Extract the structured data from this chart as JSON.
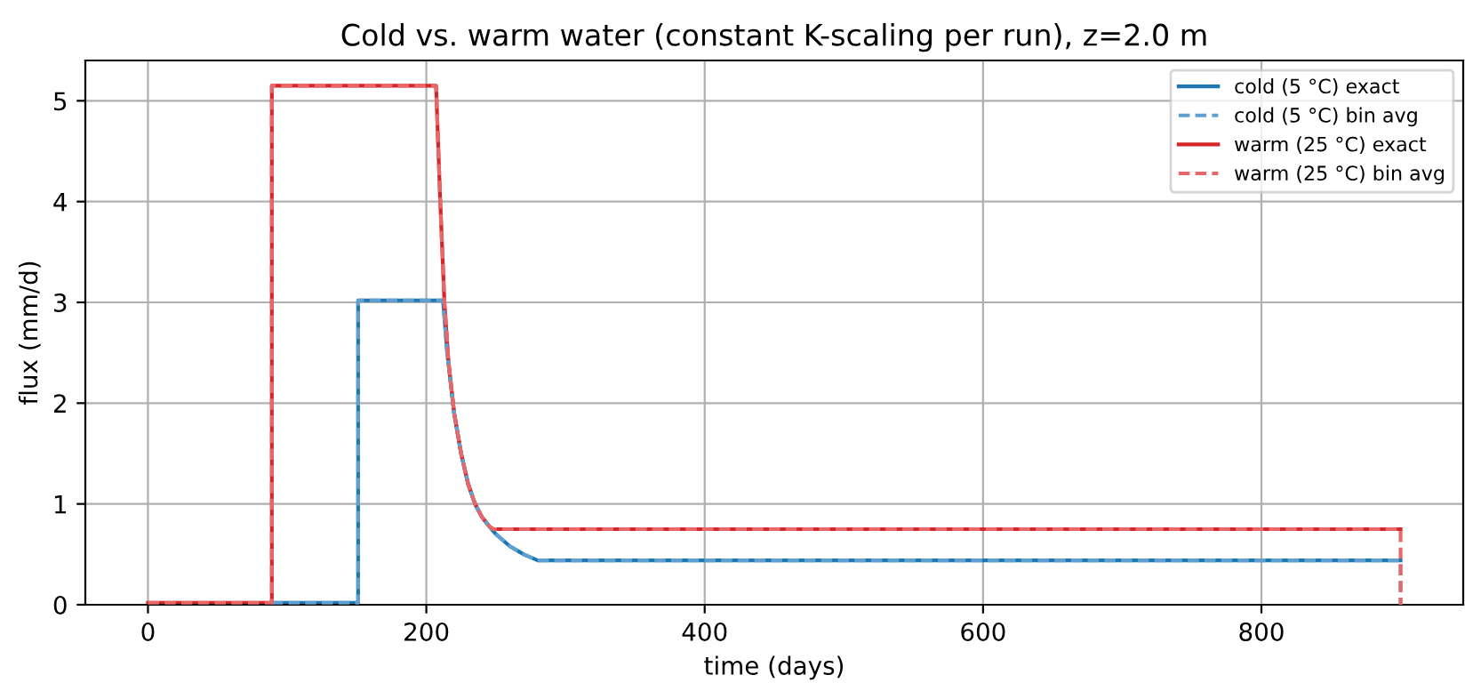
{
  "chart_data": {
    "type": "line",
    "title": "Cold vs. warm water (constant K-scaling per run), z=2.0 m",
    "xlabel": "time (days)",
    "ylabel": "flux (mm/d)",
    "xlim": [
      -45,
      945
    ],
    "ylim": [
      0,
      5.4
    ],
    "xticks": [
      0,
      200,
      400,
      600,
      800
    ],
    "yticks": [
      0,
      1,
      2,
      3,
      4,
      5
    ],
    "grid": true,
    "legend": "top right",
    "marker": "none",
    "series": [
      {
        "name": "cold (5 °C) exact",
        "color": "#1f77b4",
        "line_style": "solid",
        "x": [
          89,
          151,
          151,
          212,
          215,
          220,
          225,
          230,
          235,
          240,
          245,
          250,
          260,
          270,
          280,
          900
        ],
        "values": [
          0.02,
          0.02,
          3.02,
          3.02,
          2.5,
          1.9,
          1.5,
          1.2,
          1.0,
          0.87,
          0.78,
          0.7,
          0.58,
          0.5,
          0.44,
          0.44
        ]
      },
      {
        "name": "cold (5 °C) bin avg",
        "color": "#5fa0d0",
        "line_style": "dashed",
        "x": [
          89,
          151,
          151,
          212,
          215,
          220,
          225,
          230,
          235,
          240,
          245,
          250,
          260,
          270,
          280,
          900,
          900
        ],
        "values": [
          0.02,
          0.02,
          3.02,
          3.02,
          2.5,
          1.9,
          1.5,
          1.2,
          1.0,
          0.87,
          0.78,
          0.7,
          0.58,
          0.5,
          0.44,
          0.44,
          0
        ]
      },
      {
        "name": "warm (25 °C) exact",
        "color": "#d62728",
        "line_style": "solid",
        "x": [
          0,
          89,
          89,
          207,
          210,
          213,
          216,
          220,
          225,
          230,
          235,
          240,
          245,
          248,
          900
        ],
        "values": [
          0.02,
          0.02,
          5.15,
          5.15,
          4.0,
          3.0,
          2.4,
          1.9,
          1.5,
          1.2,
          1.0,
          0.87,
          0.78,
          0.75,
          0.75
        ]
      },
      {
        "name": "warm (25 °C) bin avg",
        "color": "#e8686a",
        "line_style": "dashed",
        "x": [
          0,
          89,
          89,
          207,
          210,
          213,
          216,
          220,
          225,
          230,
          235,
          240,
          245,
          248,
          900,
          900
        ],
        "values": [
          0.02,
          0.02,
          5.15,
          5.15,
          4.0,
          3.0,
          2.4,
          1.9,
          1.5,
          1.2,
          1.0,
          0.87,
          0.78,
          0.75,
          0.75,
          0
        ]
      }
    ]
  }
}
